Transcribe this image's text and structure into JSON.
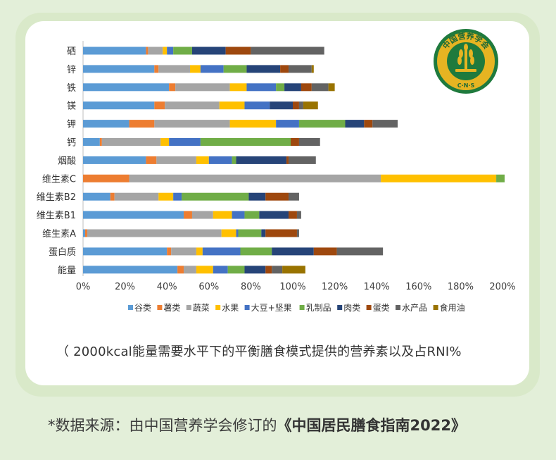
{
  "logo": {
    "text": "中国营养学会",
    "subtext": "C·N·S",
    "colors": {
      "ring": "#1f7a3d",
      "fill": "#e6b422",
      "text": "#fbe9a0"
    }
  },
  "caption": "（ 2000kcal能量需要水平下的平衡膳食模式提供的营养素以及占RNI%",
  "source": {
    "prefix": "*数据来源：由中国营养学会修订的",
    "book": "《中国居民膳食指南2022》"
  },
  "chart_data": {
    "type": "bar",
    "orientation": "horizontal",
    "stacked": true,
    "categories": [
      "硒",
      "锌",
      "铁",
      "镁",
      "钾",
      "钙",
      "烟酸",
      "维生素C",
      "维生素B2",
      "维生素B1",
      "维生素A",
      "蛋白质",
      "能量"
    ],
    "xlim": [
      0,
      200
    ],
    "x_ticks": [
      "0%",
      "20%",
      "40%",
      "60%",
      "80%",
      "100%",
      "120%",
      "140%",
      "160%",
      "180%",
      "200%"
    ],
    "legend_position": "bottom",
    "grid": false,
    "series": [
      {
        "name": "谷类",
        "color": "#5b9bd5",
        "values": [
          30,
          34,
          41,
          34,
          22,
          8,
          30,
          0,
          13,
          48,
          1,
          40,
          45
        ]
      },
      {
        "name": "薯类",
        "color": "#ed7d31",
        "values": [
          1,
          2,
          3,
          5,
          12,
          1,
          5,
          22,
          2,
          4,
          1,
          2,
          3
        ]
      },
      {
        "name": "蔬菜",
        "color": "#a5a5a5",
        "values": [
          7,
          15,
          26,
          26,
          36,
          28,
          19,
          120,
          21,
          10,
          64,
          12,
          6
        ]
      },
      {
        "name": "水果",
        "color": "#ffc000",
        "values": [
          2,
          5,
          8,
          12,
          22,
          4,
          6,
          55,
          7,
          9,
          7,
          3,
          8
        ]
      },
      {
        "name": "大豆+坚果",
        "color": "#4472c4",
        "values": [
          3,
          11,
          14,
          12,
          11,
          15,
          11,
          0,
          4,
          6,
          1,
          18,
          7
        ]
      },
      {
        "name": "乳制品",
        "color": "#70ad47",
        "values": [
          9,
          11,
          4,
          0,
          22,
          43,
          2,
          4,
          32,
          7,
          11,
          15,
          8
        ]
      },
      {
        "name": "肉类",
        "color": "#264478",
        "values": [
          16,
          16,
          8,
          11,
          9,
          0,
          24,
          0,
          8,
          14,
          2,
          20,
          10
        ]
      },
      {
        "name": "蛋类",
        "color": "#9e480e",
        "values": [
          12,
          4,
          5,
          3,
          4,
          4,
          1,
          0,
          11,
          4,
          15,
          11,
          3
        ]
      },
      {
        "name": "水产品",
        "color": "#636363",
        "values": [
          35,
          11,
          8,
          2,
          12,
          10,
          13,
          0,
          5,
          2,
          1,
          22,
          5
        ]
      },
      {
        "name": "食用油",
        "color": "#997300",
        "values": [
          0,
          1,
          3,
          7,
          0,
          0,
          0,
          0,
          0,
          0,
          0,
          0,
          11
        ]
      }
    ]
  }
}
